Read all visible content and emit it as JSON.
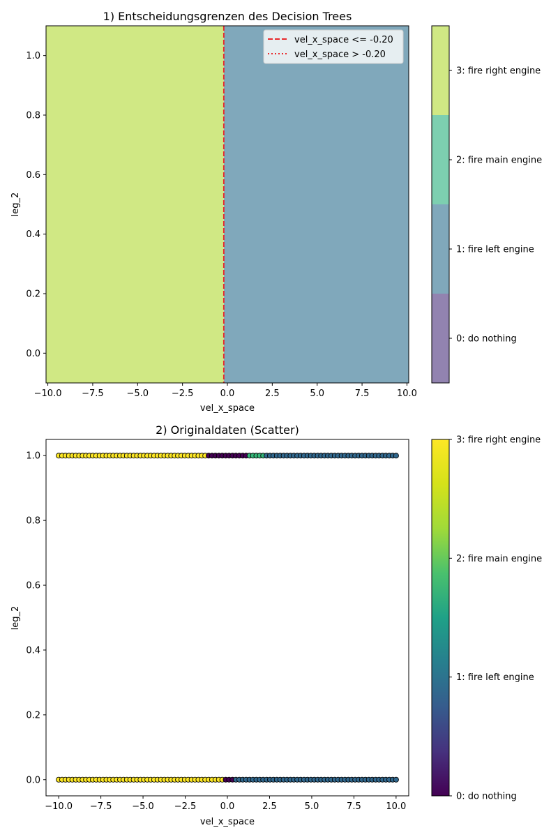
{
  "chart_data": [
    {
      "type": "heatmap",
      "title": "1) Entscheidungsgrenzen des Decision Trees",
      "xlabel": "vel_x_space",
      "ylabel": "leg_2",
      "xlim": [
        -10.1,
        10.1
      ],
      "ylim": [
        -0.1,
        1.1
      ],
      "x_ticks": [
        -10.0,
        -7.5,
        -5.0,
        -2.5,
        0.0,
        2.5,
        5.0,
        7.5,
        10.0
      ],
      "x_tick_labels": [
        "−10.0",
        "−7.5",
        "−5.0",
        "−2.5",
        "0.0",
        "2.5",
        "5.0",
        "7.5",
        "10.0"
      ],
      "y_ticks": [
        0.0,
        0.2,
        0.4,
        0.6,
        0.8,
        1.0
      ],
      "y_tick_labels": [
        "0.0",
        "0.2",
        "0.4",
        "0.6",
        "0.8",
        "1.0"
      ],
      "regions": [
        {
          "x_from": -10.1,
          "x_to": -0.2,
          "class": 3,
          "color": "#d0e884"
        },
        {
          "x_from": -0.2,
          "x_to": 10.1,
          "class": 1,
          "color": "#80a8bb"
        }
      ],
      "split": {
        "feature": "vel_x_space",
        "threshold": -0.2,
        "color": "#e8272a"
      },
      "legend": {
        "position": "upper right",
        "entries": [
          {
            "label": "vel_x_space <= -0.20",
            "style": "dashed"
          },
          {
            "label": "vel_x_space > -0.20",
            "style": "dotted"
          }
        ]
      },
      "colorbar": {
        "kind": "discrete",
        "classes": [
          {
            "value": 0,
            "label": "0: do nothing",
            "color": "#9283b0"
          },
          {
            "value": 1,
            "label": "1: fire left engine",
            "color": "#80a8bb"
          },
          {
            "value": 2,
            "label": "2: fire main engine",
            "color": "#7dcfb0"
          },
          {
            "value": 3,
            "label": "3: fire right engine",
            "color": "#d0e884"
          }
        ]
      }
    },
    {
      "type": "scatter",
      "title": "2) Originaldaten (Scatter)",
      "xlabel": "vel_x_space",
      "ylabel": "leg_2",
      "xlim": [
        -10.75,
        10.75
      ],
      "ylim": [
        -0.05,
        1.05
      ],
      "x_ticks": [
        -10.0,
        -7.5,
        -5.0,
        -2.5,
        0.0,
        2.5,
        5.0,
        7.5,
        10.0
      ],
      "x_tick_labels": [
        "−10.0",
        "−7.5",
        "−5.0",
        "−2.5",
        "0.0",
        "2.5",
        "5.0",
        "7.5",
        "10.0"
      ],
      "y_ticks": [
        0.0,
        0.2,
        0.4,
        0.6,
        0.8,
        1.0
      ],
      "y_tick_labels": [
        "0.0",
        "0.2",
        "0.4",
        "0.6",
        "0.8",
        "1.0"
      ],
      "point_grid": {
        "x_start": -10.0,
        "x_end": 10.0,
        "count": 100
      },
      "rows": [
        {
          "y": 1.0,
          "segments": [
            {
              "x_from": -10.0,
              "x_to": -1.3,
              "class": 3
            },
            {
              "x_from": -1.3,
              "x_to": 1.3,
              "class": 0
            },
            {
              "x_from": 1.3,
              "x_to": 2.3,
              "class": 2
            },
            {
              "x_from": 2.3,
              "x_to": 10.0,
              "class": 1
            }
          ]
        },
        {
          "y": 0.0,
          "segments": [
            {
              "x_from": -10.0,
              "x_to": -0.2,
              "class": 3
            },
            {
              "x_from": -0.2,
              "x_to": 0.4,
              "class": 0
            },
            {
              "x_from": 0.4,
              "x_to": 10.0,
              "class": 1
            }
          ]
        }
      ],
      "colorbar": {
        "kind": "continuous",
        "cmap": "viridis",
        "min": 0,
        "max": 3,
        "ticks": [
          {
            "value": 0,
            "label": "0: do nothing"
          },
          {
            "value": 1,
            "label": "1: fire left engine"
          },
          {
            "value": 2,
            "label": "2: fire main engine"
          },
          {
            "value": 3,
            "label": "3: fire right engine"
          }
        ],
        "class_colors": [
          "#440154",
          "#31688e",
          "#35b779",
          "#fde725"
        ]
      }
    }
  ]
}
